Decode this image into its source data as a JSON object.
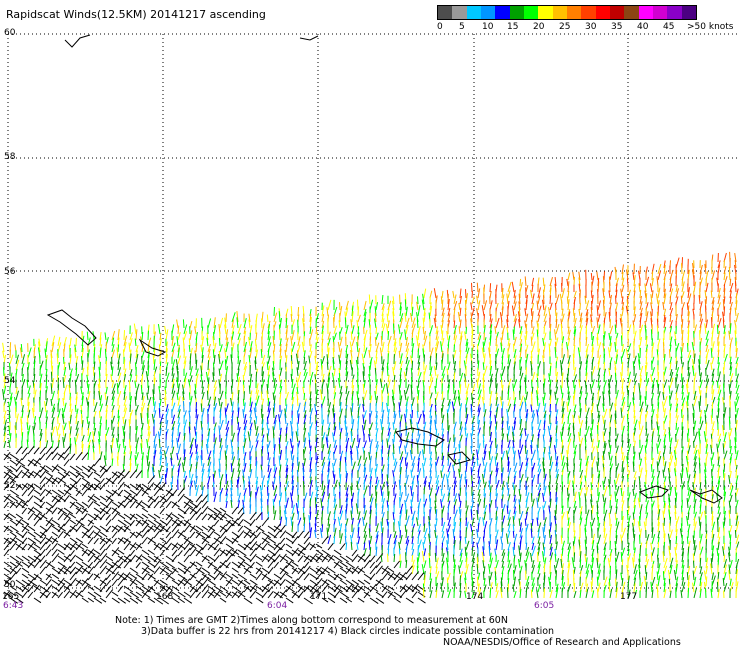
{
  "title": "Rapidscat Winds(12.5KM) 20141217 ascending",
  "legend": {
    "colors": [
      "#4d4d4d",
      "#9a9a9a",
      "#00c8ff",
      "#0096ff",
      "#0000ff",
      "#00a000",
      "#00ff00",
      "#ffff00",
      "#ffc000",
      "#ff7f00",
      "#ff4000",
      "#ff0000",
      "#c00000",
      "#8b4513",
      "#ff00ff",
      "#d100d1",
      "#8a00c8",
      "#4b0082"
    ],
    "labels": [
      "0",
      "5",
      "10",
      "15",
      "20",
      "25",
      "30",
      "35",
      "40",
      "45",
      ">50 knots"
    ]
  },
  "lat_labels": [
    "60",
    "58",
    "56",
    "54",
    "52",
    "50"
  ],
  "lon_labels": [
    "165",
    "168",
    "171",
    "174",
    "177"
  ],
  "time_labels": [
    "6:43",
    "6:04",
    "6:05"
  ],
  "notes": {
    "line1": "Note: 1) Times are GMT 2)Times along bottom correspond to measurement at 60N",
    "line2": "3)Data buffer is 22 hrs from 20141217 4) Black circles indicate possible contamination"
  },
  "credit": "NOAA/NESDIS/Office of Research and Applications"
}
